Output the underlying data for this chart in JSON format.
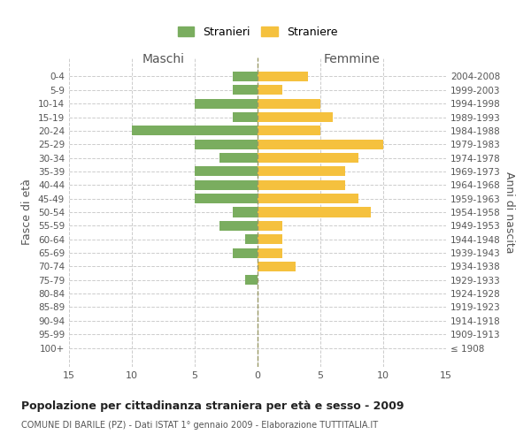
{
  "age_groups": [
    "0-4",
    "5-9",
    "10-14",
    "15-19",
    "20-24",
    "25-29",
    "30-34",
    "35-39",
    "40-44",
    "45-49",
    "50-54",
    "55-59",
    "60-64",
    "65-69",
    "70-74",
    "75-79",
    "80-84",
    "85-89",
    "90-94",
    "95-99",
    "100+"
  ],
  "birth_years": [
    "2004-2008",
    "1999-2003",
    "1994-1998",
    "1989-1993",
    "1984-1988",
    "1979-1983",
    "1974-1978",
    "1969-1973",
    "1964-1968",
    "1959-1963",
    "1954-1958",
    "1949-1953",
    "1944-1948",
    "1939-1943",
    "1934-1938",
    "1929-1933",
    "1924-1928",
    "1919-1923",
    "1914-1918",
    "1909-1913",
    "≤ 1908"
  ],
  "males": [
    2,
    2,
    5,
    2,
    10,
    5,
    3,
    5,
    5,
    5,
    2,
    3,
    1,
    2,
    0,
    1,
    0,
    0,
    0,
    0,
    0
  ],
  "females": [
    4,
    2,
    5,
    6,
    5,
    10,
    8,
    7,
    7,
    8,
    9,
    2,
    2,
    2,
    3,
    0,
    0,
    0,
    0,
    0,
    0
  ],
  "male_color": "#7aad5f",
  "female_color": "#f5c13e",
  "grid_color": "#cccccc",
  "center_line_color": "#999966",
  "title": "Popolazione per cittadinanza straniera per età e sesso - 2009",
  "subtitle": "COMUNE DI BARILE (PZ) - Dati ISTAT 1° gennaio 2009 - Elaborazione TUTTITALIA.IT",
  "ylabel_left": "Fasce di età",
  "ylabel_right": "Anni di nascita",
  "xlabel_left": "Maschi",
  "xlabel_right": "Femmine",
  "legend_male": "Stranieri",
  "legend_female": "Straniere",
  "xlim": 15,
  "bg_color": "#ffffff"
}
